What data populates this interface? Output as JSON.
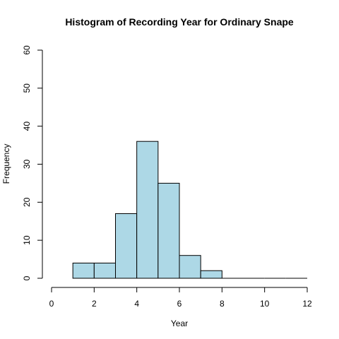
{
  "chart_data": {
    "type": "bar",
    "title": "Histogram of Recording Year for Ordinary Snape",
    "xlabel": "Year",
    "ylabel": "Frequency",
    "bins": [
      {
        "x0": 1,
        "x1": 2,
        "count": 4
      },
      {
        "x0": 2,
        "x1": 3,
        "count": 4
      },
      {
        "x0": 3,
        "x1": 4,
        "count": 17
      },
      {
        "x0": 4,
        "x1": 5,
        "count": 36
      },
      {
        "x0": 5,
        "x1": 6,
        "count": 25
      },
      {
        "x0": 6,
        "x1": 7,
        "count": 6
      },
      {
        "x0": 7,
        "x1": 8,
        "count": 2
      },
      {
        "x0": 8,
        "x1": 9,
        "count": 0
      },
      {
        "x0": 9,
        "x1": 10,
        "count": 0
      },
      {
        "x0": 10,
        "x1": 11,
        "count": 0
      },
      {
        "x0": 11,
        "x1": 12,
        "count": 0
      }
    ],
    "xlim": [
      0,
      12
    ],
    "ylim": [
      0,
      60
    ],
    "xticks": [
      0,
      2,
      4,
      6,
      8,
      10,
      12
    ],
    "yticks": [
      0,
      10,
      20,
      30,
      40,
      50,
      60
    ],
    "bar_color": "#add8e6",
    "grid": false,
    "legend": "none"
  }
}
